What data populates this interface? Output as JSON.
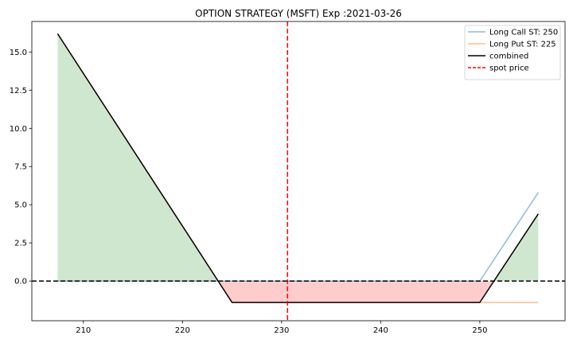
{
  "chart_data": {
    "type": "line",
    "title": "OPTION STRATEGY (MSFT)  Exp :2021-03-26",
    "xlabel": "",
    "ylabel": "",
    "xlim": [
      204.8,
      258.6
    ],
    "ylim": [
      -2.6,
      17.0
    ],
    "xticks": [
      210,
      220,
      230,
      240,
      250
    ],
    "yticks": [
      0.0,
      2.5,
      5.0,
      7.5,
      10.0,
      12.5,
      15.0
    ],
    "ytick_labels": [
      "0.0",
      "2.5",
      "5.0",
      "7.5",
      "10.0",
      "12.5",
      "15.0"
    ],
    "grid": false,
    "legend_position": "top-right",
    "x_range": [
      207.4,
      255.9
    ],
    "zero_line": {
      "y": 0,
      "style": "dashed",
      "color": "#000000"
    },
    "spot_price": {
      "name": "spot price",
      "x": 230.6,
      "color": "#ff0000",
      "style": "dashed"
    },
    "series": [
      {
        "name": "Long Call ST: 250",
        "color": "#1f77b4",
        "alpha": 0.5,
        "x": [
          207.4,
          250,
          255.9
        ],
        "y": [
          0,
          0,
          5.8
        ]
      },
      {
        "name": "Long Put ST: 225",
        "color": "#ff7f0e",
        "alpha": 0.5,
        "x": [
          207.4,
          225,
          255.9
        ],
        "y": [
          16.2,
          -1.4,
          -1.4
        ]
      },
      {
        "name": "combined",
        "color": "#000000",
        "alpha": 1.0,
        "x": [
          207.4,
          225,
          250,
          255.9
        ],
        "y": [
          16.2,
          -1.4,
          -1.4,
          4.4
        ]
      }
    ],
    "fill_positive_color": "#008000",
    "fill_negative_color": "#ff0000"
  }
}
